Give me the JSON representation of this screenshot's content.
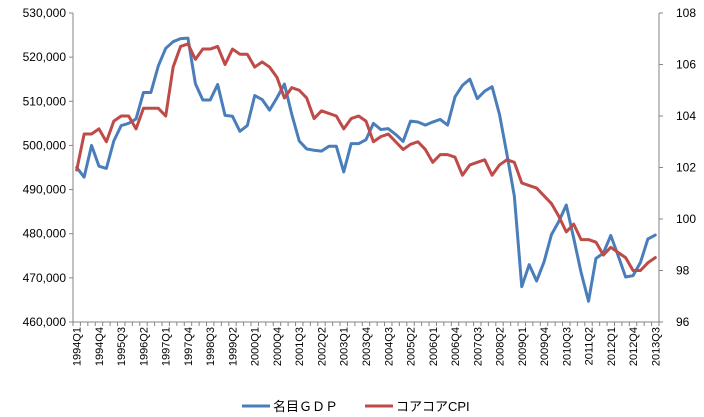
{
  "chart_data": {
    "type": "line",
    "x": [
      "1994Q1",
      "1994Q2",
      "1994Q3",
      "1994Q4",
      "1995Q1",
      "1995Q2",
      "1995Q3",
      "1995Q4",
      "1996Q1",
      "1996Q2",
      "1996Q3",
      "1996Q4",
      "1997Q1",
      "1997Q2",
      "1997Q3",
      "1997Q4",
      "1998Q1",
      "1998Q2",
      "1998Q3",
      "1998Q4",
      "1999Q1",
      "1999Q2",
      "1999Q3",
      "1999Q4",
      "2000Q1",
      "2000Q2",
      "2000Q3",
      "2000Q4",
      "2001Q1",
      "2001Q2",
      "2001Q3",
      "2001Q4",
      "2002Q1",
      "2002Q2",
      "2002Q3",
      "2002Q4",
      "2003Q1",
      "2003Q2",
      "2003Q3",
      "2003Q4",
      "2004Q1",
      "2004Q2",
      "2004Q3",
      "2004Q4",
      "2005Q1",
      "2005Q2",
      "2005Q3",
      "2005Q4",
      "2006Q1",
      "2006Q2",
      "2006Q3",
      "2006Q4",
      "2007Q1",
      "2007Q2",
      "2007Q3",
      "2007Q4",
      "2008Q1",
      "2008Q2",
      "2008Q3",
      "2008Q4",
      "2009Q1",
      "2009Q2",
      "2009Q3",
      "2009Q4",
      "2010Q1",
      "2010Q2",
      "2010Q3",
      "2010Q4",
      "2011Q1",
      "2011Q2",
      "2011Q3",
      "2011Q4",
      "2012Q1",
      "2012Q2",
      "2012Q3",
      "2012Q4",
      "2013Q1",
      "2013Q2",
      "2013Q3"
    ],
    "x_tick_labels": [
      "1994Q1",
      "1994Q4",
      "1995Q3",
      "1996Q2",
      "1997Q1",
      "1997Q4",
      "1998Q3",
      "1999Q2",
      "2000Q1",
      "2000Q4",
      "2001Q3",
      "2002Q2",
      "2003Q1",
      "2003Q4",
      "2004Q3",
      "2005Q2",
      "2006Q1",
      "2006Q4",
      "2007Q3",
      "2008Q2",
      "2009Q1",
      "2009Q4",
      "2010Q3",
      "2011Q2",
      "2012Q1",
      "2012Q4",
      "2013Q3"
    ],
    "series": [
      {
        "name": "名目ＧＤＰ",
        "axis": "left",
        "color": "#4a7ebb",
        "values": [
          495000,
          492800,
          500000,
          495300,
          494800,
          501000,
          504500,
          505000,
          506000,
          512000,
          512000,
          518000,
          522000,
          523500,
          524200,
          524300,
          514000,
          510300,
          510300,
          513800,
          506800,
          506600,
          503200,
          504500,
          511300,
          510400,
          508000,
          510800,
          513900,
          507000,
          501000,
          499200,
          498900,
          498700,
          499800,
          499800,
          494000,
          500400,
          500400,
          501300,
          505000,
          503600,
          503800,
          502500,
          500900,
          505500,
          505300,
          504600,
          505300,
          505900,
          504600,
          511000,
          513600,
          515000,
          510600,
          512300,
          513300,
          507000,
          498000,
          488500,
          468000,
          473000,
          469300,
          473600,
          479800,
          482800,
          486500,
          479000,
          471200,
          464700,
          474400,
          475600,
          479600,
          475000,
          470200,
          470500,
          473500,
          478800,
          479700
        ]
      },
      {
        "name": "コアコアCPI",
        "axis": "right",
        "color": "#be4b48",
        "values": [
          101.9,
          103.3,
          103.3,
          103.5,
          103.0,
          103.8,
          104.0,
          104.0,
          103.5,
          104.3,
          104.3,
          104.3,
          104.0,
          105.9,
          106.7,
          106.8,
          106.2,
          106.6,
          106.6,
          106.7,
          106.0,
          106.6,
          106.4,
          106.4,
          105.9,
          106.1,
          105.9,
          105.5,
          104.7,
          105.1,
          105.0,
          104.7,
          103.9,
          104.2,
          104.1,
          104.0,
          103.5,
          103.9,
          104.0,
          103.8,
          103.0,
          103.2,
          103.3,
          103.0,
          102.7,
          102.9,
          103.0,
          102.7,
          102.2,
          102.5,
          102.5,
          102.4,
          101.7,
          102.1,
          102.2,
          102.3,
          101.7,
          102.1,
          102.3,
          102.2,
          101.4,
          101.3,
          101.2,
          100.9,
          100.6,
          100.1,
          99.5,
          99.8,
          99.2,
          99.2,
          99.1,
          98.6,
          98.9,
          98.7,
          98.5,
          98.0,
          98.0,
          98.3,
          98.5
        ]
      }
    ],
    "ylim_left": [
      460000,
      530000
    ],
    "ylim_right": [
      96,
      108
    ],
    "y_ticks_left": [
      "460,000",
      "470,000",
      "480,000",
      "490,000",
      "500,000",
      "510,000",
      "520,000",
      "530,000"
    ],
    "y_ticks_right": [
      "96",
      "98",
      "100",
      "102",
      "104",
      "106",
      "108"
    ],
    "grid": false,
    "legend_placement": "bottom"
  }
}
